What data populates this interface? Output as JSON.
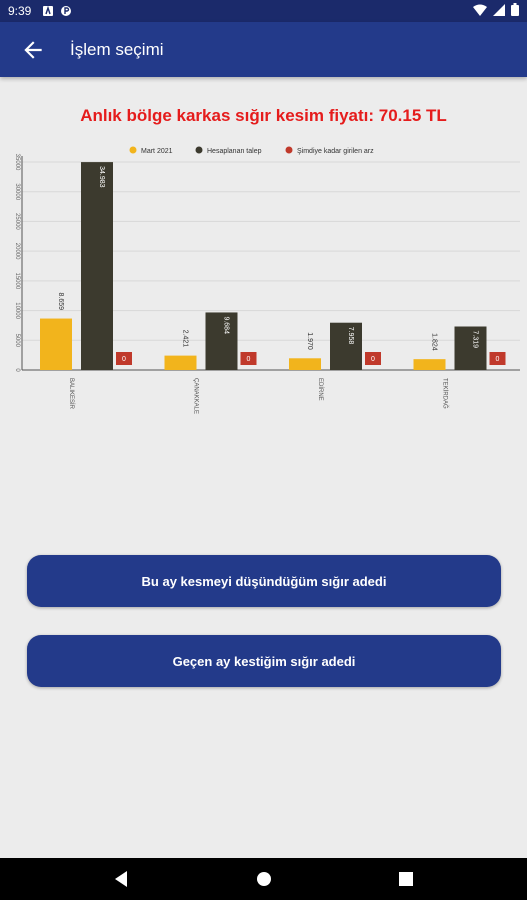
{
  "status": {
    "time": "9:39",
    "icons": [
      "a-badge-icon",
      "p-badge-icon",
      "wifi-icon",
      "signal-icon",
      "battery-icon"
    ]
  },
  "app_bar": {
    "title": "İşlem seçimi"
  },
  "headline": "Anlık bölge karkas sığır kesim fiyatı: 70.15 TL",
  "chart_data": {
    "type": "bar",
    "categories": [
      "BALIKESİR",
      "ÇANAKKALE",
      "EDİRNE",
      "TEKİRDAĞ"
    ],
    "series": [
      {
        "name": "Mart 2021",
        "color": "#f2b41c",
        "values": [
          8659,
          2421,
          1970,
          1824
        ]
      },
      {
        "name": "Hesaplanan talep",
        "color": "#3c3a2e",
        "values": [
          34983,
          9684,
          7958,
          7319
        ]
      },
      {
        "name": "Şimdiye kadar girilen arz",
        "color": "#c0392b",
        "values": [
          0,
          0,
          0,
          0
        ]
      }
    ],
    "y_ticks": [
      0,
      5000,
      10000,
      15000,
      20000,
      25000,
      30000,
      35000
    ],
    "ylim": [
      0,
      35000
    ],
    "legend_position": "top",
    "grid": true
  },
  "buttons": {
    "planned": "Bu ay kesmeyi düşündüğüm sığır adedi",
    "last_month": "Geçen ay kestiğim sığır adedi"
  },
  "colors": {
    "primary": "#233a8a",
    "status": "#1b2a6b",
    "headline": "#e51c1c"
  }
}
